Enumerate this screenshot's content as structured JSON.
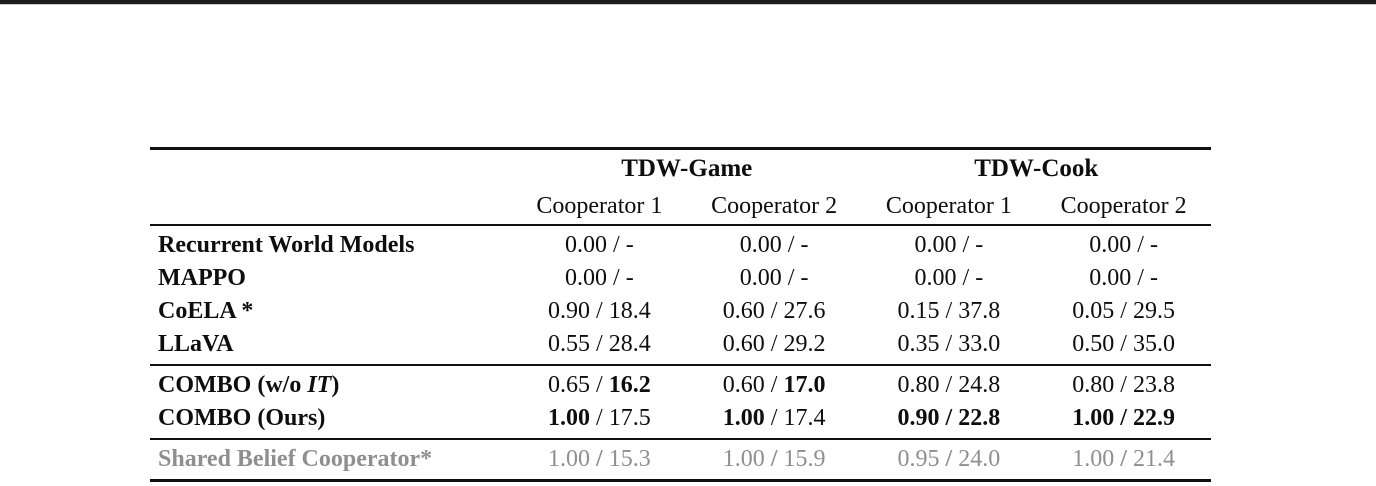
{
  "page": {
    "background": "#ffffff",
    "rule_color": "#101010",
    "muted_color": "#8f8f8f"
  },
  "table": {
    "groups": [
      {
        "label": "TDW-Game"
      },
      {
        "label": "TDW-Cook"
      }
    ],
    "subheaders": [
      "Cooperator 1",
      "Cooperator 2",
      "Cooperator 1",
      "Cooperator 2"
    ],
    "separator": " / ",
    "sections": [
      {
        "rows": [
          {
            "label": [
              {
                "t": "Recurrent World Models"
              }
            ],
            "cells": [
              {
                "a": "0.00",
                "b": "-"
              },
              {
                "a": "0.00",
                "b": "-"
              },
              {
                "a": "0.00",
                "b": "-"
              },
              {
                "a": "0.00",
                "b": "-"
              }
            ]
          },
          {
            "label": [
              {
                "t": "MAPPO"
              }
            ],
            "cells": [
              {
                "a": "0.00",
                "b": "-"
              },
              {
                "a": "0.00",
                "b": "-"
              },
              {
                "a": "0.00",
                "b": "-"
              },
              {
                "a": "0.00",
                "b": "-"
              }
            ]
          },
          {
            "label": [
              {
                "t": "CoELA *"
              }
            ],
            "cells": [
              {
                "a": "0.90",
                "b": "18.4"
              },
              {
                "a": "0.60",
                "b": "27.6"
              },
              {
                "a": "0.15",
                "b": "37.8"
              },
              {
                "a": "0.05",
                "b": "29.5"
              }
            ]
          },
          {
            "label": [
              {
                "t": "LLaVA"
              }
            ],
            "cells": [
              {
                "a": "0.55",
                "b": "28.4"
              },
              {
                "a": "0.60",
                "b": "29.2"
              },
              {
                "a": "0.35",
                "b": "33.0"
              },
              {
                "a": "0.50",
                "b": "35.0"
              }
            ]
          }
        ]
      },
      {
        "rows": [
          {
            "label": [
              {
                "t": "COMBO (w/o "
              },
              {
                "t": "IT",
                "i": true
              },
              {
                "t": ")"
              }
            ],
            "cells": [
              {
                "a": "0.65",
                "b": "16.2",
                "bb": true
              },
              {
                "a": "0.60",
                "b": "17.0",
                "bb": true
              },
              {
                "a": "0.80",
                "b": "24.8"
              },
              {
                "a": "0.80",
                "b": "23.8"
              }
            ]
          },
          {
            "label": [
              {
                "t": "COMBO (Ours)"
              }
            ],
            "cells": [
              {
                "a": "1.00",
                "ab": true,
                "b": "17.5"
              },
              {
                "a": "1.00",
                "ab": true,
                "b": "17.4"
              },
              {
                "a": "0.90",
                "ab": true,
                "b": "22.8",
                "bb": true,
                "sb": true
              },
              {
                "a": "1.00",
                "ab": true,
                "b": "22.9",
                "bb": true,
                "sb": true
              }
            ]
          }
        ]
      },
      {
        "rows": [
          {
            "label": [
              {
                "t": "Shared Belief Cooperator*"
              }
            ],
            "muted": true,
            "cells": [
              {
                "a": "1.00",
                "b": "15.3",
                "sb": true
              },
              {
                "a": "1.00",
                "b": "15.9",
                "sb": true
              },
              {
                "a": "0.95",
                "b": "24.0",
                "sb": true
              },
              {
                "a": "1.00",
                "b": "21.4",
                "sb": true
              }
            ]
          }
        ]
      }
    ]
  }
}
